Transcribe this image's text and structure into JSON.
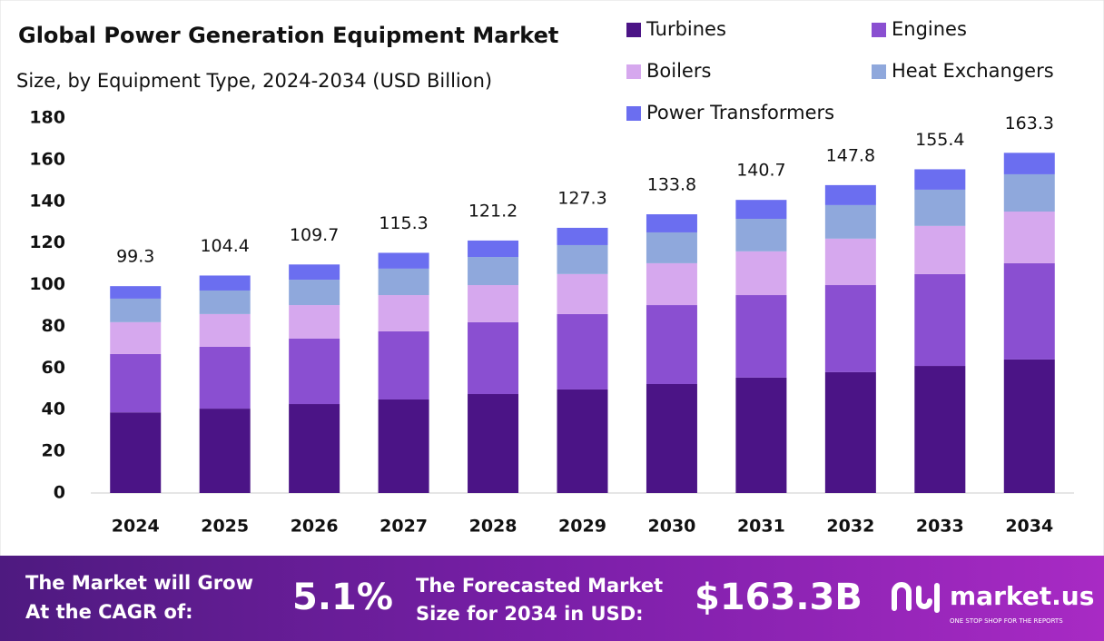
{
  "chart_data": {
    "type": "stacked-bar",
    "title": "Global Power Generation Equipment Market",
    "subtitle": "Size, by Equipment Type, 2024-2034 (USD Billion)",
    "categories": [
      "2024",
      "2025",
      "2026",
      "2027",
      "2028",
      "2029",
      "2030",
      "2031",
      "2032",
      "2033",
      "2034"
    ],
    "series": [
      {
        "name": "Turbines",
        "color": "#4b1486",
        "values": [
          38.7,
          40.5,
          42.7,
          44.9,
          47.5,
          49.7,
          52.3,
          55.4,
          58.0,
          61.0,
          64.1
        ]
      },
      {
        "name": "Engines",
        "color": "#8a4fd1",
        "values": [
          28.0,
          29.7,
          31.4,
          32.7,
          34.5,
          36.2,
          37.9,
          39.6,
          41.8,
          44.1,
          46.2
        ]
      },
      {
        "name": "Boilers",
        "color": "#d6a8ee",
        "values": [
          15.3,
          15.7,
          16.1,
          17.4,
          17.8,
          19.2,
          20.1,
          21.0,
          22.3,
          23.1,
          24.8
        ]
      },
      {
        "name": "Heat Exchangers",
        "color": "#8fa8dc",
        "values": [
          11.3,
          11.3,
          12.2,
          12.7,
          13.5,
          13.9,
          14.8,
          15.6,
          16.1,
          17.4,
          17.9
        ]
      },
      {
        "name": "Power Transformers",
        "color": "#6b6ef0",
        "values": [
          6.0,
          7.2,
          7.3,
          7.6,
          7.9,
          8.3,
          8.7,
          9.1,
          9.6,
          9.8,
          10.3
        ]
      }
    ],
    "totals": [
      99.3,
      104.4,
      109.7,
      115.3,
      121.2,
      127.3,
      133.8,
      140.7,
      147.8,
      155.4,
      163.3
    ],
    "ylim": [
      0,
      180
    ],
    "yticks": [
      0,
      20,
      40,
      60,
      80,
      100,
      120,
      140,
      160,
      180
    ],
    "grid": false
  },
  "footer": {
    "cagr_text": [
      "The Market will Grow",
      "At the CAGR of:"
    ],
    "cagr_value": "5.1%",
    "forecast_text": [
      "The Forecasted Market",
      "Size for 2034 in USD:"
    ],
    "forecast_value": "$163.3B",
    "brand": "market.us",
    "tagline": "ONE STOP SHOP FOR THE REPORTS"
  }
}
